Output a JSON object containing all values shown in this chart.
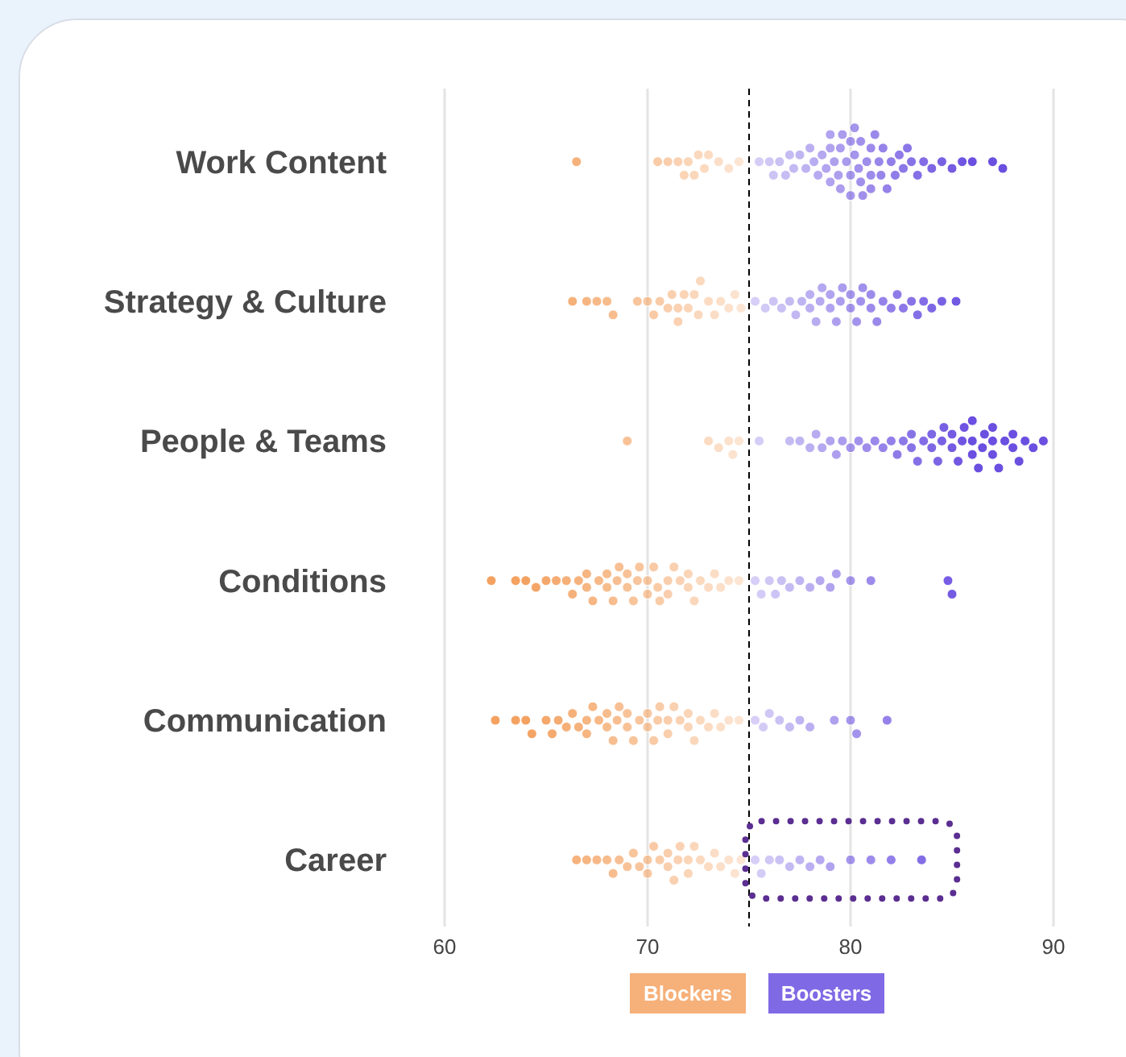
{
  "chart_data": {
    "type": "scatter",
    "orientation": "horizontal",
    "categories": [
      "Work Content",
      "Strategy & Culture",
      "People & Teams",
      "Conditions",
      "Communication",
      "Career"
    ],
    "xlim": [
      60,
      90
    ],
    "xticks": [
      60,
      70,
      80,
      90
    ],
    "grid": "x",
    "legend": "bottom",
    "marker": "circle",
    "ref_lines": [
      {
        "axis": "x",
        "value": 75,
        "color": "#000000",
        "line_style": "dashed"
      }
    ],
    "series": [
      {
        "name": "Blockers",
        "color": "#f4a261",
        "x": [
          "Work Content",
          "Work Content",
          "Work Content",
          "Work Content",
          "Work Content",
          "Work Content",
          "Work Content",
          "Work Content",
          "Work Content",
          "Work Content",
          "Work Content",
          "Work Content",
          "Work Content",
          "Strategy & Culture",
          "Strategy & Culture",
          "Strategy & Culture",
          "Strategy & Culture",
          "Strategy & Culture",
          "Strategy & Culture",
          "Strategy & Culture",
          "Strategy & Culture",
          "Strategy & Culture",
          "Strategy & Culture",
          "Strategy & Culture",
          "Strategy & Culture",
          "Strategy & Culture",
          "Strategy & Culture",
          "Strategy & Culture",
          "Strategy & Culture",
          "Strategy & Culture",
          "Strategy & Culture",
          "Strategy & Culture",
          "Strategy & Culture",
          "Strategy & Culture",
          "Strategy & Culture",
          "Strategy & Culture",
          "Strategy & Culture",
          "People & Teams",
          "People & Teams",
          "People & Teams",
          "People & Teams",
          "People & Teams",
          "People & Teams",
          "Conditions",
          "Conditions",
          "Conditions",
          "Conditions",
          "Conditions",
          "Conditions",
          "Conditions",
          "Conditions",
          "Conditions",
          "Conditions",
          "Conditions",
          "Conditions",
          "Conditions",
          "Conditions",
          "Conditions",
          "Conditions",
          "Conditions",
          "Conditions",
          "Conditions",
          "Conditions",
          "Conditions",
          "Conditions",
          "Conditions",
          "Conditions",
          "Conditions",
          "Conditions",
          "Conditions",
          "Conditions",
          "Conditions",
          "Conditions",
          "Conditions",
          "Conditions",
          "Conditions",
          "Conditions",
          "Conditions",
          "Conditions",
          "Conditions",
          "Conditions",
          "Conditions",
          "Conditions",
          "Conditions",
          "Communication",
          "Communication",
          "Communication",
          "Communication",
          "Communication",
          "Communication",
          "Communication",
          "Communication",
          "Communication",
          "Communication",
          "Communication",
          "Communication",
          "Communication",
          "Communication",
          "Communication",
          "Communication",
          "Communication",
          "Communication",
          "Communication",
          "Communication",
          "Communication",
          "Communication",
          "Communication",
          "Communication",
          "Communication",
          "Communication",
          "Communication",
          "Communication",
          "Communication",
          "Communication",
          "Communication",
          "Communication",
          "Communication",
          "Communication",
          "Communication",
          "Communication",
          "Communication",
          "Communication",
          "Communication",
          "Communication",
          "Communication",
          "Career",
          "Career",
          "Career",
          "Career",
          "Career",
          "Career",
          "Career",
          "Career",
          "Career",
          "Career",
          "Career",
          "Career",
          "Career",
          "Career",
          "Career",
          "Career",
          "Career",
          "Career",
          "Career",
          "Career",
          "Career",
          "Career",
          "Career",
          "Career",
          "Career",
          "Career",
          "Career",
          "Career"
        ],
        "values": [
          66.5,
          70.5,
          71,
          71.5,
          72,
          72.5,
          73,
          71.8,
          72.3,
          73.5,
          74,
          74.5,
          72.8,
          66.3,
          67,
          67.5,
          68,
          68.3,
          69.5,
          70,
          70.3,
          70.6,
          71,
          71.2,
          71.5,
          71.8,
          72,
          72.3,
          72.6,
          73,
          73.3,
          73.6,
          74,
          74.3,
          74.6,
          72.5,
          71.5,
          69,
          73,
          73.5,
          74,
          74.2,
          74.5,
          62.3,
          63.5,
          64,
          64.5,
          65,
          65.5,
          66,
          66.3,
          66.6,
          67,
          67.3,
          67.6,
          68,
          68.3,
          68.6,
          69,
          69.3,
          69.6,
          70,
          70.3,
          70.6,
          71,
          71.3,
          71.6,
          72,
          72.3,
          72.6,
          73,
          73.3,
          73.6,
          74,
          74.5,
          67,
          68,
          69,
          70,
          70.5,
          71,
          72,
          69.5,
          68.5,
          62.5,
          63.5,
          64,
          64.3,
          65,
          65.3,
          65.6,
          66,
          66.3,
          66.6,
          67,
          67.3,
          67.6,
          68,
          68.3,
          68.6,
          69,
          69.3,
          69.6,
          70,
          70.3,
          70.6,
          71,
          71.3,
          71.6,
          72,
          72.3,
          72.6,
          73,
          73.3,
          73.6,
          74,
          74.5,
          67,
          68,
          69,
          70,
          71,
          72,
          68.5,
          70.5,
          66.5,
          67,
          67.5,
          68,
          68.3,
          68.6,
          69,
          69.3,
          69.6,
          70,
          70.3,
          70.6,
          71,
          71.3,
          71.6,
          72,
          72.3,
          72.6,
          73,
          73.3,
          73.6,
          74,
          74.3,
          74.6,
          70,
          71,
          71.5,
          72
        ]
      },
      {
        "name": "Boosters",
        "color": "#6a4fe0",
        "x": [
          "Work Content",
          "Work Content",
          "Work Content",
          "Work Content",
          "Work Content",
          "Work Content",
          "Work Content",
          "Work Content",
          "Work Content",
          "Work Content",
          "Work Content",
          "Work Content",
          "Work Content",
          "Work Content",
          "Work Content",
          "Work Content",
          "Work Content",
          "Work Content",
          "Work Content",
          "Work Content",
          "Work Content",
          "Work Content",
          "Work Content",
          "Work Content",
          "Work Content",
          "Work Content",
          "Work Content",
          "Work Content",
          "Work Content",
          "Work Content",
          "Work Content",
          "Work Content",
          "Work Content",
          "Work Content",
          "Work Content",
          "Work Content",
          "Work Content",
          "Work Content",
          "Work Content",
          "Work Content",
          "Work Content",
          "Work Content",
          "Work Content",
          "Work Content",
          "Work Content",
          "Work Content",
          "Work Content",
          "Work Content",
          "Work Content",
          "Work Content",
          "Work Content",
          "Work Content",
          "Work Content",
          "Work Content",
          "Work Content",
          "Work Content",
          "Strategy & Culture",
          "Strategy & Culture",
          "Strategy & Culture",
          "Strategy & Culture",
          "Strategy & Culture",
          "Strategy & Culture",
          "Strategy & Culture",
          "Strategy & Culture",
          "Strategy & Culture",
          "Strategy & Culture",
          "Strategy & Culture",
          "Strategy & Culture",
          "Strategy & Culture",
          "Strategy & Culture",
          "Strategy & Culture",
          "Strategy & Culture",
          "Strategy & Culture",
          "Strategy & Culture",
          "Strategy & Culture",
          "Strategy & Culture",
          "Strategy & Culture",
          "Strategy & Culture",
          "Strategy & Culture",
          "Strategy & Culture",
          "Strategy & Culture",
          "Strategy & Culture",
          "Strategy & Culture",
          "Strategy & Culture",
          "Strategy & Culture",
          "Strategy & Culture",
          "Strategy & Culture",
          "Strategy & Culture",
          "Strategy & Culture",
          "Strategy & Culture",
          "Strategy & Culture",
          "People & Teams",
          "People & Teams",
          "People & Teams",
          "People & Teams",
          "People & Teams",
          "People & Teams",
          "People & Teams",
          "People & Teams",
          "People & Teams",
          "People & Teams",
          "People & Teams",
          "People & Teams",
          "People & Teams",
          "People & Teams",
          "People & Teams",
          "People & Teams",
          "People & Teams",
          "People & Teams",
          "People & Teams",
          "People & Teams",
          "People & Teams",
          "People & Teams",
          "People & Teams",
          "People & Teams",
          "People & Teams",
          "People & Teams",
          "People & Teams",
          "People & Teams",
          "People & Teams",
          "People & Teams",
          "People & Teams",
          "People & Teams",
          "People & Teams",
          "People & Teams",
          "People & Teams",
          "People & Teams",
          "People & Teams",
          "People & Teams",
          "People & Teams",
          "People & Teams",
          "People & Teams",
          "People & Teams",
          "People & Teams",
          "People & Teams",
          "People & Teams",
          "People & Teams",
          "People & Teams",
          "People & Teams",
          "Conditions",
          "Conditions",
          "Conditions",
          "Conditions",
          "Conditions",
          "Conditions",
          "Conditions",
          "Conditions",
          "Conditions",
          "Conditions",
          "Conditions",
          "Conditions",
          "Conditions",
          "Conditions",
          "Conditions",
          "Communication",
          "Communication",
          "Communication",
          "Communication",
          "Communication",
          "Communication",
          "Communication",
          "Communication",
          "Communication",
          "Communication",
          "Communication",
          "Career",
          "Career",
          "Career",
          "Career",
          "Career",
          "Career",
          "Career",
          "Career",
          "Career",
          "Career",
          "Career",
          "Career",
          "Career"
        ],
        "values": [
          75.5,
          76,
          76.2,
          76.5,
          76.8,
          77,
          77.2,
          77.5,
          77.8,
          78,
          78.2,
          78.4,
          78.6,
          78.8,
          79,
          79.2,
          79.4,
          79.6,
          79.8,
          80,
          80.2,
          80.4,
          80.6,
          80.8,
          81,
          81.2,
          81.4,
          81.6,
          81.8,
          82,
          82.2,
          82.4,
          82.6,
          82.8,
          83,
          83.3,
          83.6,
          84,
          84.5,
          85,
          85.5,
          86,
          87,
          87.5,
          79,
          79.5,
          80,
          80.5,
          81,
          81.5,
          80,
          79,
          80.5,
          81,
          79.5,
          80.2,
          75.3,
          75.8,
          76.2,
          76.6,
          77,
          77.3,
          77.6,
          78,
          78.3,
          78.6,
          79,
          79.3,
          79.6,
          80,
          80.3,
          80.6,
          81,
          81.3,
          81.6,
          82,
          82.3,
          82.6,
          83,
          83.3,
          83.6,
          84,
          84.5,
          85.2,
          78,
          79,
          80,
          80.5,
          81,
          79.5,
          78.5,
          75.5,
          77,
          77.5,
          78,
          78.3,
          78.6,
          79,
          79.3,
          79.6,
          80,
          80.4,
          80.8,
          81.2,
          81.6,
          82,
          82.3,
          82.6,
          83,
          83.3,
          83.6,
          84,
          84.3,
          84.6,
          85,
          85.3,
          85.6,
          86,
          86.3,
          86.6,
          87,
          87.3,
          87.6,
          88,
          88.3,
          88.6,
          89,
          89.5,
          84,
          85,
          86,
          86.5,
          87,
          85.5,
          84.5,
          86,
          87,
          83,
          88,
          75.3,
          75.6,
          76,
          76.3,
          76.6,
          77,
          77.5,
          78,
          78.5,
          79,
          79.3,
          80,
          81,
          84.8,
          85,
          75.3,
          75.7,
          76,
          76.5,
          77,
          77.5,
          78,
          79.2,
          80,
          80.3,
          81.8,
          75.3,
          75.6,
          76,
          76.5,
          77,
          77.5,
          78,
          78.5,
          79,
          80,
          81,
          82,
          83.5
        ]
      }
    ]
  }
}
